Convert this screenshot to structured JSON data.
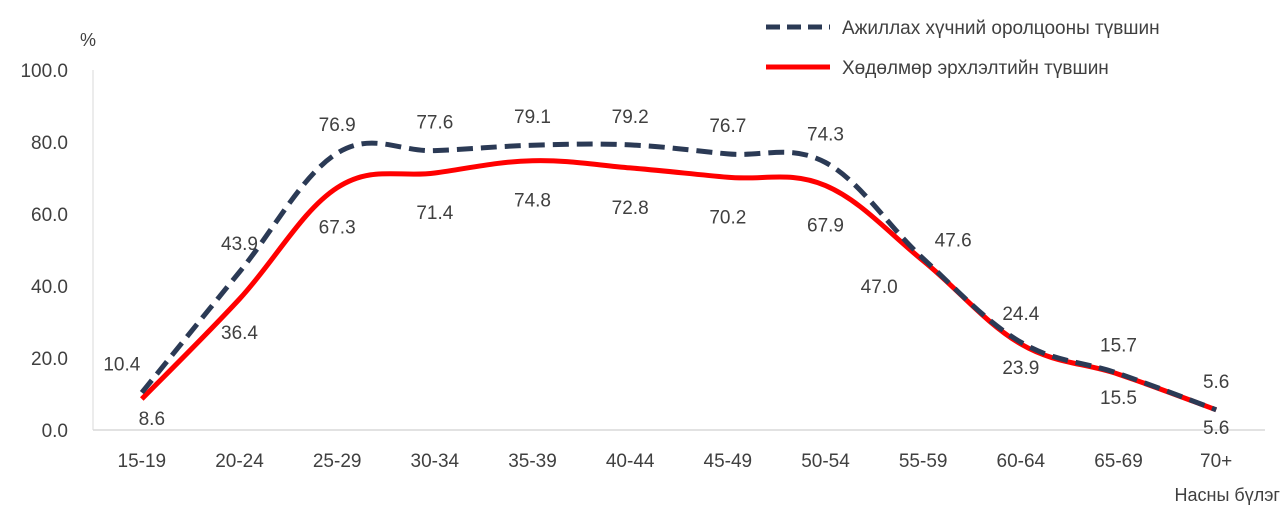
{
  "chart_data": {
    "type": "line",
    "categories": [
      "15-19",
      "20-24",
      "25-29",
      "30-34",
      "35-39",
      "40-44",
      "45-49",
      "50-54",
      "55-59",
      "60-64",
      "65-69",
      "70+"
    ],
    "series": [
      {
        "name": "Ажиллах хүчний оролцооны түвшин",
        "values": [
          10.4,
          43.9,
          76.9,
          77.6,
          79.1,
          79.2,
          76.7,
          74.3,
          47.6,
          24.4,
          15.7,
          5.6
        ],
        "labels": [
          "10.4",
          "43.9",
          "76.9",
          "77.6",
          "79.1",
          "79.2",
          "76.7",
          "74.3",
          "47.6",
          "24.4",
          "15.7",
          "5.6"
        ],
        "color": "#2b3a55",
        "style": "dashed"
      },
      {
        "name": "Хөдөлмөр эрхлэлтийн түвшин",
        "values": [
          8.6,
          36.4,
          67.3,
          71.4,
          74.8,
          72.8,
          70.2,
          67.9,
          47.0,
          23.9,
          15.5,
          5.6
        ],
        "labels": [
          "8.6",
          "36.4",
          "67.3",
          "71.4",
          "74.8",
          "72.8",
          "70.2",
          "67.9",
          "47.0",
          "23.9",
          "15.5",
          "5.6"
        ],
        "color": "#ff0000",
        "style": "solid"
      }
    ],
    "ylim": [
      0,
      100
    ],
    "yticks": [
      "0.0",
      "20.0",
      "40.0",
      "60.0",
      "80.0",
      "100.0"
    ],
    "ytick_values": [
      0,
      20,
      40,
      60,
      80,
      100
    ],
    "ylabel": "%",
    "xlabel": "Насны бүлэг",
    "grid": false,
    "legend_position": "top-right"
  }
}
